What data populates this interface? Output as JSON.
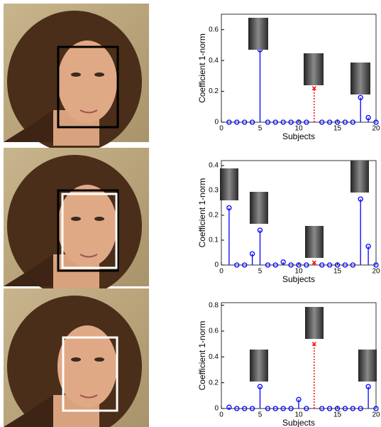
{
  "chart_data": [
    {
      "type": "stem",
      "xlabel": "Subjects",
      "ylabel": "Coefficient 1-norm",
      "x": [
        1,
        2,
        3,
        4,
        5,
        6,
        7,
        8,
        9,
        10,
        11,
        12,
        13,
        14,
        15,
        16,
        17,
        18,
        19,
        20
      ],
      "series": [
        {
          "color": "#0000ff",
          "values": [
            0,
            0,
            0,
            0,
            0.47,
            0,
            0,
            0,
            0,
            0,
            0,
            null,
            0,
            0,
            0,
            0,
            0,
            0.16,
            0.03,
            0
          ]
        },
        {
          "color": "#ff0000",
          "values": [
            null,
            null,
            null,
            null,
            null,
            null,
            null,
            null,
            null,
            null,
            null,
            0.22,
            null,
            null,
            null,
            null,
            null,
            null,
            null,
            null
          ]
        }
      ],
      "xlim": [
        0,
        20
      ],
      "xticks": [
        0,
        5,
        10,
        15,
        20
      ],
      "ylim": [
        0,
        0.7
      ],
      "yticks": [
        0,
        0.2,
        0.4,
        0.6
      ]
    },
    {
      "type": "stem",
      "xlabel": "Subjects",
      "ylabel": "Coefficient 1-norm",
      "x": [
        1,
        2,
        3,
        4,
        5,
        6,
        7,
        8,
        9,
        10,
        11,
        12,
        13,
        14,
        15,
        16,
        17,
        18,
        19,
        20
      ],
      "series": [
        {
          "color": "#0000ff",
          "values": [
            0.23,
            0,
            0,
            0.045,
            0.14,
            0,
            0,
            0.012,
            0,
            0,
            0,
            null,
            0,
            0,
            0,
            0,
            0,
            0.265,
            0.075,
            0
          ]
        },
        {
          "color": "#ff0000",
          "values": [
            null,
            null,
            null,
            null,
            null,
            null,
            null,
            null,
            null,
            null,
            null,
            0.01,
            null,
            null,
            null,
            null,
            null,
            null,
            null,
            null
          ]
        }
      ],
      "xlim": [
        0,
        20
      ],
      "xticks": [
        0,
        5,
        10,
        15,
        20
      ],
      "ylim": [
        0,
        0.42
      ],
      "yticks": [
        0,
        0.1,
        0.2,
        0.3,
        0.4
      ]
    },
    {
      "type": "stem",
      "xlabel": "Subjects",
      "ylabel": "Coefficient 1-norm",
      "x": [
        1,
        2,
        3,
        4,
        5,
        6,
        7,
        8,
        9,
        10,
        11,
        12,
        13,
        14,
        15,
        16,
        17,
        18,
        19,
        20
      ],
      "series": [
        {
          "color": "#0000ff",
          "values": [
            0.01,
            0,
            0,
            0,
            0.17,
            0,
            0,
            0,
            0,
            0.07,
            0,
            null,
            0,
            0,
            0,
            0,
            0,
            0,
            0.17,
            0
          ]
        },
        {
          "color": "#ff0000",
          "values": [
            null,
            null,
            null,
            null,
            null,
            null,
            null,
            null,
            null,
            null,
            null,
            0.5,
            null,
            null,
            null,
            null,
            null,
            null,
            null,
            null
          ]
        }
      ],
      "xlim": [
        0,
        20
      ],
      "xticks": [
        0,
        5,
        10,
        15,
        20
      ],
      "ylim": [
        0,
        0.82
      ],
      "yticks": [
        0,
        0.2,
        0.4,
        0.6,
        0.8
      ]
    }
  ]
}
